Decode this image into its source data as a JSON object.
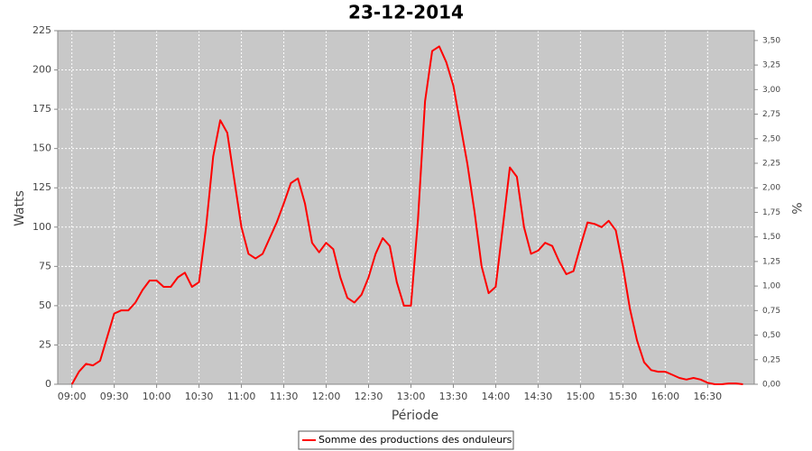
{
  "chart_data": {
    "type": "line",
    "title": "23-12-2014",
    "x_label": "Période",
    "y_label": "Watts",
    "y2_label": "%",
    "x": [
      "09:00",
      "09:05",
      "09:10",
      "09:15",
      "09:20",
      "09:25",
      "09:30",
      "09:35",
      "09:40",
      "09:45",
      "09:50",
      "09:55",
      "10:00",
      "10:05",
      "10:10",
      "10:15",
      "10:20",
      "10:25",
      "10:30",
      "10:35",
      "10:40",
      "10:45",
      "10:50",
      "10:55",
      "11:00",
      "11:05",
      "11:10",
      "11:15",
      "11:20",
      "11:25",
      "11:30",
      "11:35",
      "11:40",
      "11:45",
      "11:50",
      "11:55",
      "12:00",
      "12:05",
      "12:10",
      "12:15",
      "12:20",
      "12:25",
      "12:30",
      "12:35",
      "12:40",
      "12:45",
      "12:50",
      "12:55",
      "13:00",
      "13:05",
      "13:10",
      "13:15",
      "13:20",
      "13:25",
      "13:30",
      "13:35",
      "13:40",
      "13:45",
      "13:50",
      "13:55",
      "14:00",
      "14:05",
      "14:10",
      "14:15",
      "14:20",
      "14:25",
      "14:30",
      "14:35",
      "14:40",
      "14:45",
      "14:50",
      "14:55",
      "15:00",
      "15:05",
      "15:10",
      "15:15",
      "15:20",
      "15:25",
      "15:30",
      "15:35",
      "15:40",
      "15:45",
      "15:50",
      "15:55",
      "16:00",
      "16:05",
      "16:10",
      "16:15",
      "16:20",
      "16:25",
      "16:30",
      "16:35",
      "16:40",
      "16:45",
      "16:50",
      "16:55"
    ],
    "series": [
      {
        "name": "Somme des productions des onduleurs",
        "color": "#ff0000",
        "values": [
          0,
          8,
          13,
          12,
          15,
          30,
          45,
          47,
          47,
          52,
          60,
          66,
          66,
          62,
          62,
          68,
          71,
          62,
          65,
          100,
          145,
          168,
          160,
          130,
          100,
          83,
          80,
          83,
          93,
          103,
          115,
          128,
          131,
          115,
          90,
          84,
          90,
          86,
          68,
          55,
          52,
          57,
          68,
          83,
          93,
          88,
          65,
          50,
          50,
          105,
          180,
          212,
          215,
          205,
          190,
          165,
          140,
          110,
          75,
          58,
          62,
          100,
          138,
          132,
          100,
          83,
          85,
          90,
          88,
          78,
          70,
          72,
          88,
          103,
          102,
          100,
          104,
          98,
          75,
          48,
          28,
          14,
          9,
          8,
          8,
          6,
          4,
          3,
          4,
          3,
          1,
          0,
          0,
          0.5,
          0.5,
          0
        ]
      }
    ],
    "xlim": [
      "08:50",
      "17:03"
    ],
    "xticks": [
      "09:00",
      "09:30",
      "10:00",
      "10:30",
      "11:00",
      "11:30",
      "12:00",
      "12:30",
      "13:00",
      "13:30",
      "14:00",
      "14:30",
      "15:00",
      "15:30",
      "16:00",
      "16:30"
    ],
    "ylim": [
      0,
      225
    ],
    "yticks": [
      0,
      25,
      50,
      75,
      100,
      125,
      150,
      175,
      200,
      225
    ],
    "y2lim": [
      0,
      3.6
    ],
    "y2ticks": [
      {
        "value": 0,
        "label": "0,00"
      },
      {
        "value": 0.25,
        "label": "0,25"
      },
      {
        "value": 0.5,
        "label": "0,50"
      },
      {
        "value": 0.75,
        "label": "0,75"
      },
      {
        "value": 1,
        "label": "1,00"
      },
      {
        "value": 1.25,
        "label": "1,25"
      },
      {
        "value": 1.5,
        "label": "1,50"
      },
      {
        "value": 1.75,
        "label": "1,75"
      },
      {
        "value": 2,
        "label": "2,00"
      },
      {
        "value": 2.25,
        "label": "2,25"
      },
      {
        "value": 2.5,
        "label": "2,50"
      },
      {
        "value": 2.75,
        "label": "2,75"
      },
      {
        "value": 3,
        "label": "3,00"
      },
      {
        "value": 3.25,
        "label": "3,25"
      },
      {
        "value": 3.5,
        "label": "3,50"
      }
    ],
    "grid": true,
    "legend": "bottom",
    "plot_background": "#c8c8c8"
  }
}
